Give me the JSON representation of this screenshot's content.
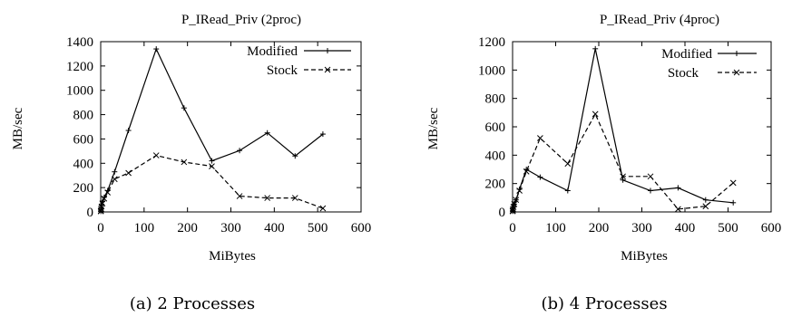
{
  "chart_data": [
    {
      "type": "line",
      "title": "P_IRead_Priv (2proc)",
      "xlabel": "MiBytes",
      "ylabel": "MB/sec",
      "caption": "(a) 2 Processes",
      "xlim": [
        0,
        600
      ],
      "ylim": [
        0,
        1400
      ],
      "xticks": [
        "0",
        "100",
        "200",
        "300",
        "400",
        "500",
        "600"
      ],
      "yticks": [
        "0",
        "200",
        "400",
        "600",
        "800",
        "1000",
        "1200",
        "1400"
      ],
      "legend_position": "top-right",
      "grid": false,
      "series": [
        {
          "name": "Modified",
          "style": "solid",
          "marker": "+",
          "x": [
            0.25,
            0.5,
            1,
            2,
            4,
            8,
            16,
            32,
            64,
            128,
            192,
            256,
            320,
            384,
            448,
            512
          ],
          "y": [
            5,
            15,
            30,
            55,
            85,
            120,
            175,
            330,
            670,
            1340,
            855,
            420,
            505,
            650,
            460,
            640
          ]
        },
        {
          "name": "Stock",
          "style": "dashed",
          "marker": "x",
          "x": [
            0.25,
            0.5,
            1,
            2,
            4,
            8,
            16,
            32,
            64,
            128,
            192,
            256,
            320,
            384,
            448,
            512
          ],
          "y": [
            5,
            10,
            25,
            45,
            70,
            110,
            160,
            270,
            320,
            465,
            410,
            375,
            130,
            115,
            115,
            30
          ]
        }
      ]
    },
    {
      "type": "line",
      "title": "P_IRead_Priv (4proc)",
      "xlabel": "MiBytes",
      "ylabel": "MB/sec",
      "caption": "(b) 4 Processes",
      "xlim": [
        0,
        600
      ],
      "ylim": [
        0,
        1200
      ],
      "xticks": [
        "0",
        "100",
        "200",
        "300",
        "400",
        "500",
        "600"
      ],
      "yticks": [
        "0",
        "200",
        "400",
        "600",
        "800",
        "1000",
        "1200"
      ],
      "legend_position": "top-right",
      "grid": false,
      "series": [
        {
          "name": "Modified",
          "style": "solid",
          "marker": "+",
          "x": [
            0.25,
            0.5,
            1,
            2,
            4,
            8,
            16,
            32,
            64,
            128,
            192,
            256,
            320,
            384,
            448,
            512
          ],
          "y": [
            5,
            10,
            20,
            35,
            55,
            85,
            160,
            300,
            245,
            150,
            1150,
            225,
            150,
            170,
            85,
            65
          ]
        },
        {
          "name": "Stock",
          "style": "dashed",
          "marker": "x",
          "x": [
            0.25,
            0.5,
            1,
            2,
            4,
            8,
            16,
            32,
            64,
            128,
            192,
            256,
            320,
            384,
            448,
            512
          ],
          "y": [
            5,
            10,
            20,
            35,
            55,
            85,
            150,
            285,
            520,
            340,
            690,
            250,
            250,
            20,
            40,
            205
          ]
        }
      ]
    }
  ]
}
